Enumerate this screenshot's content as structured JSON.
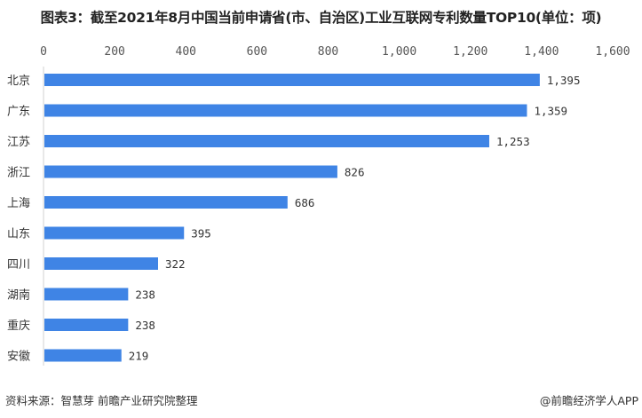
{
  "chart_data": {
    "type": "bar",
    "orientation": "horizontal",
    "title": "图表3：截至2021年8月中国当前申请省(市、自治区)工业互联网专利数量TOP10(单位：项)",
    "categories": [
      "北京",
      "广东",
      "江苏",
      "浙江",
      "上海",
      "山东",
      "四川",
      "湖南",
      "重庆",
      "安徽"
    ],
    "values": [
      1395,
      1359,
      1253,
      826,
      686,
      395,
      322,
      238,
      238,
      219
    ],
    "value_labels": [
      "1,395",
      "1,359",
      "1,253",
      "826",
      "686",
      "395",
      "322",
      "238",
      "238",
      "219"
    ],
    "xlim": [
      0,
      1600
    ],
    "x_ticks": [
      "0",
      "200",
      "400",
      "600",
      "800",
      "1,000",
      "1,200",
      "1,400",
      "1,600"
    ],
    "x_axis_position": "top",
    "grid": false,
    "bar_color": "#3f84e5"
  },
  "footer": {
    "source": "资料来源：智慧芽 前瞻产业研究院整理",
    "credit": "@前瞻经济学人APP"
  }
}
